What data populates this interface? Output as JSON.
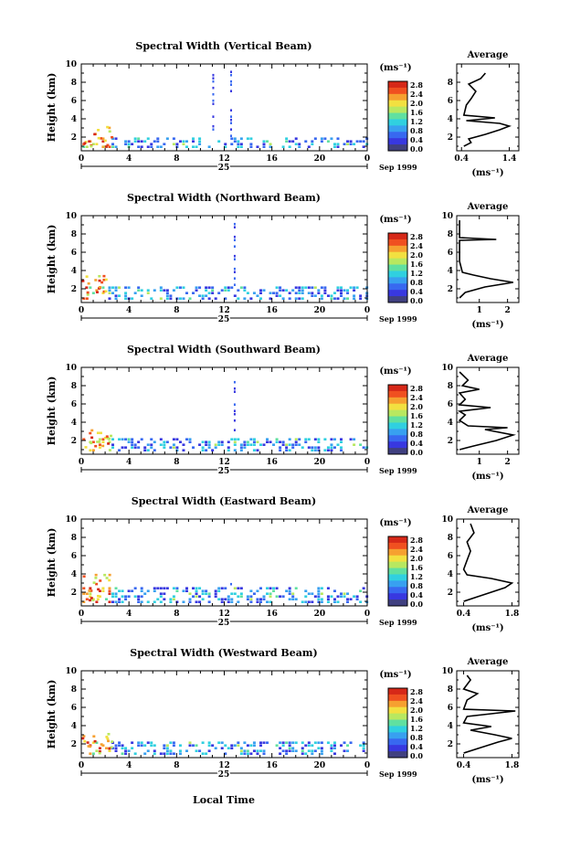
{
  "footer": {
    "xlabel": "Local Time"
  },
  "colorbar": {
    "unit": "(ms⁻¹)",
    "ticks": [
      "2.8",
      "2.4",
      "2.0",
      "1.6",
      "1.2",
      "0.8",
      "0.4",
      "0.0"
    ],
    "colors": [
      "#d62818",
      "#f05020",
      "#f6a030",
      "#f2e040",
      "#b8e860",
      "#60e0a0",
      "#30d0e0",
      "#38a0f0",
      "#3868f0",
      "#3838e0",
      "#404080"
    ]
  },
  "chart_data": [
    {
      "type": "heatmap",
      "title": "Spectral Width (Vertical Beam)",
      "ylabel": "Height (km)",
      "xticks": [
        "0",
        "4",
        "8",
        "12",
        "16",
        "20",
        "0"
      ],
      "yticks": [
        "2",
        "4",
        "6",
        "8",
        "10"
      ],
      "xlim": [
        0,
        24
      ],
      "ylim": [
        0.5,
        10
      ],
      "date_day": "25",
      "date_month": "Sep 1999",
      "cells": {
        "low_band": [
          0.8,
          2.0
        ],
        "spike_hours": [
          11.0,
          12.5
        ],
        "spike_top": 9.2,
        "early_high": [
          0.0,
          2.5,
          3.0
        ]
      },
      "average": {
        "title": "Average",
        "xticks": [
          "0.4",
          "1.4"
        ],
        "xlim": [
          0.3,
          1.6
        ],
        "xlabel": "(ms⁻¹)",
        "yticks": [
          "2",
          "4",
          "6",
          "8"
        ],
        "profile": [
          [
            0.45,
            1.0
          ],
          [
            0.6,
            1.4
          ],
          [
            0.55,
            1.8
          ],
          [
            0.9,
            2.3
          ],
          [
            1.2,
            2.8
          ],
          [
            1.4,
            3.2
          ],
          [
            1.2,
            3.5
          ],
          [
            0.5,
            3.8
          ],
          [
            1.1,
            4.1
          ],
          [
            0.45,
            4.4
          ],
          [
            0.5,
            5.5
          ],
          [
            0.6,
            6.2
          ],
          [
            0.7,
            7.0
          ],
          [
            0.55,
            7.8
          ],
          [
            0.8,
            8.4
          ],
          [
            0.9,
            9.0
          ]
        ]
      }
    },
    {
      "type": "heatmap",
      "title": "Spectral Width (Northward Beam)",
      "ylabel": "Height (km)",
      "xticks": [
        "0",
        "4",
        "8",
        "12",
        "16",
        "20",
        "0"
      ],
      "yticks": [
        "2",
        "4",
        "6",
        "8",
        "10"
      ],
      "xlim": [
        0,
        24
      ],
      "ylim": [
        0.5,
        10
      ],
      "date_day": "25",
      "date_month": "Sep 1999",
      "cells": {
        "low_band": [
          0.8,
          2.3
        ],
        "spike_hours": [
          12.8
        ],
        "spike_top": 9.5,
        "early_high": [
          0.0,
          2.0,
          3.3
        ]
      },
      "average": {
        "title": "Average",
        "xticks": [
          "1",
          "2"
        ],
        "xlim": [
          0.2,
          2.4
        ],
        "xlabel": "(ms⁻¹)",
        "yticks": [
          "2",
          "4",
          "6",
          "8",
          "10"
        ],
        "profile": [
          [
            0.3,
            1.0
          ],
          [
            0.5,
            1.6
          ],
          [
            1.2,
            2.2
          ],
          [
            2.2,
            2.7
          ],
          [
            1.4,
            3.1
          ],
          [
            0.8,
            3.5
          ],
          [
            0.4,
            3.8
          ],
          [
            0.3,
            5.0
          ],
          [
            0.3,
            6.5
          ],
          [
            0.3,
            7.3
          ],
          [
            1.6,
            7.4
          ],
          [
            0.3,
            7.6
          ],
          [
            0.3,
            9.5
          ]
        ]
      }
    },
    {
      "type": "heatmap",
      "title": "Spectral Width (Southward Beam)",
      "ylabel": "Height (km)",
      "xticks": [
        "0",
        "4",
        "8",
        "12",
        "16",
        "20",
        "0"
      ],
      "yticks": [
        "2",
        "4",
        "6",
        "8",
        "10"
      ],
      "xlim": [
        0,
        24
      ],
      "ylim": [
        0.5,
        10
      ],
      "date_day": "25",
      "date_month": "Sep 1999",
      "cells": {
        "low_band": [
          0.8,
          2.3
        ],
        "spike_hours": [
          12.8
        ],
        "spike_top": 8.6,
        "early_high": [
          0.0,
          2.5,
          3.0
        ]
      },
      "average": {
        "title": "Average",
        "xticks": [
          "1",
          "2"
        ],
        "xlim": [
          0.2,
          2.4
        ],
        "xlabel": "(ms⁻¹)",
        "yticks": [
          "2",
          "4",
          "6",
          "8",
          "10"
        ],
        "profile": [
          [
            0.3,
            1.0
          ],
          [
            0.8,
            1.4
          ],
          [
            1.6,
            2.0
          ],
          [
            2.2,
            2.6
          ],
          [
            1.2,
            3.2
          ],
          [
            2.0,
            3.4
          ],
          [
            0.6,
            3.6
          ],
          [
            0.3,
            4.2
          ],
          [
            0.5,
            4.8
          ],
          [
            0.3,
            5.2
          ],
          [
            1.4,
            5.6
          ],
          [
            0.3,
            5.9
          ],
          [
            0.5,
            6.5
          ],
          [
            0.3,
            7.2
          ],
          [
            1.0,
            7.6
          ],
          [
            0.4,
            8.0
          ],
          [
            0.6,
            8.6
          ],
          [
            0.3,
            9.5
          ]
        ]
      }
    },
    {
      "type": "heatmap",
      "title": "Spectral Width (Eastward Beam)",
      "ylabel": "Height (km)",
      "xticks": [
        "0",
        "4",
        "8",
        "12",
        "16",
        "20",
        "0"
      ],
      "yticks": [
        "2",
        "4",
        "6",
        "8",
        "10"
      ],
      "xlim": [
        0,
        24
      ],
      "ylim": [
        0.5,
        10
      ],
      "date_day": "25",
      "date_month": "Sep 1999",
      "cells": {
        "low_band": [
          0.8,
          2.4
        ],
        "spike_hours": [
          12.5
        ],
        "spike_top": 2.8,
        "early_high": [
          0.0,
          2.5,
          3.8
        ]
      },
      "average": {
        "title": "Average",
        "xticks": [
          "0.4",
          "1.8"
        ],
        "xlim": [
          0.2,
          2.0
        ],
        "xlabel": "(ms⁻¹)",
        "yticks": [
          "2",
          "4",
          "6",
          "8",
          "10"
        ],
        "profile": [
          [
            0.4,
            1.0
          ],
          [
            0.8,
            1.5
          ],
          [
            1.2,
            2.0
          ],
          [
            1.6,
            2.5
          ],
          [
            1.8,
            3.0
          ],
          [
            1.2,
            3.5
          ],
          [
            0.5,
            3.9
          ],
          [
            0.4,
            4.5
          ],
          [
            0.5,
            5.5
          ],
          [
            0.6,
            6.5
          ],
          [
            0.5,
            7.5
          ],
          [
            0.7,
            8.5
          ],
          [
            0.6,
            9.5
          ]
        ]
      }
    },
    {
      "type": "heatmap",
      "title": "Spectral Width (Westward Beam)",
      "ylabel": "Height (km)",
      "xticks": [
        "0",
        "4",
        "8",
        "12",
        "16",
        "20",
        "0"
      ],
      "yticks": [
        "2",
        "4",
        "6",
        "8",
        "10"
      ],
      "xlim": [
        0,
        24
      ],
      "ylim": [
        0.5,
        10
      ],
      "date_day": "25",
      "date_month": "Sep 1999",
      "cells": {
        "low_band": [
          0.8,
          2.3
        ],
        "spike_hours": [],
        "spike_top": 2.5,
        "early_high": [
          0.0,
          2.5,
          3.0
        ]
      },
      "average": {
        "title": "Average",
        "xticks": [
          "0.4",
          "1.8"
        ],
        "xlim": [
          0.2,
          2.0
        ],
        "xlabel": "(ms⁻¹)",
        "yticks": [
          "2",
          "4",
          "6",
          "8",
          "10"
        ],
        "profile": [
          [
            0.4,
            1.0
          ],
          [
            0.9,
            1.6
          ],
          [
            1.4,
            2.2
          ],
          [
            1.8,
            2.6
          ],
          [
            1.3,
            3.0
          ],
          [
            0.6,
            3.5
          ],
          [
            1.2,
            3.9
          ],
          [
            0.4,
            4.3
          ],
          [
            0.5,
            5.0
          ],
          [
            1.9,
            5.6
          ],
          [
            0.4,
            5.8
          ],
          [
            0.5,
            6.8
          ],
          [
            0.8,
            7.5
          ],
          [
            0.4,
            8.0
          ],
          [
            0.6,
            9.0
          ],
          [
            0.5,
            9.5
          ]
        ]
      }
    }
  ]
}
